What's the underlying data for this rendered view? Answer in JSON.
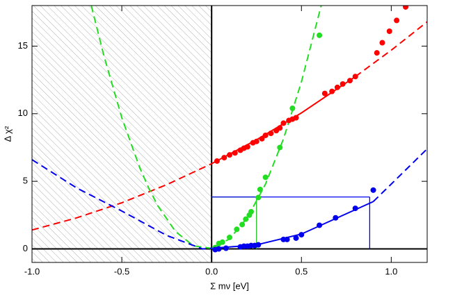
{
  "chart_data": {
    "type": "scatter",
    "xlabel": "Σ mν [eV]",
    "ylabel": "Δ χ²",
    "xlim": [
      -1.0,
      1.2
    ],
    "ylim": [
      -1,
      18
    ],
    "xticks": [
      {
        "value": -1.0,
        "label": "-1.0"
      },
      -0.5,
      {
        "value": 0.0,
        "label": "0.0"
      },
      0.5,
      {
        "value": 1.0,
        "label": "1.0"
      }
    ],
    "yticks": [
      0,
      5,
      10,
      15
    ],
    "shaded_region": [
      -1.0,
      0.0
    ],
    "series": [
      {
        "color": "#ff0000",
        "x": [
          0.03,
          0.07,
          0.1,
          0.13,
          0.16,
          0.18,
          0.2,
          0.23,
          0.25,
          0.28,
          0.3,
          0.33,
          0.36,
          0.38,
          0.4,
          0.43,
          0.45,
          0.47,
          0.63,
          0.67,
          0.7,
          0.73,
          0.77,
          0.8,
          0.92,
          0.95,
          0.99,
          1.03,
          1.08
        ],
        "values": [
          6.5,
          6.75,
          6.95,
          7.1,
          7.3,
          7.45,
          7.55,
          7.85,
          7.95,
          8.15,
          8.4,
          8.55,
          8.75,
          8.95,
          9.3,
          9.5,
          9.6,
          9.7,
          11.5,
          11.65,
          11.95,
          12.2,
          12.45,
          12.75,
          14.5,
          15.25,
          16.1,
          16.9,
          17.9
        ]
      },
      {
        "color": "#22dd22",
        "x": [
          0.02,
          0.04,
          0.06,
          0.1,
          0.14,
          0.17,
          0.19,
          0.21,
          0.22,
          0.26,
          0.27,
          0.3,
          0.38,
          0.45,
          0.6
        ],
        "values": [
          0.1,
          0.4,
          0.5,
          0.85,
          1.45,
          1.8,
          2.2,
          2.5,
          2.75,
          3.8,
          4.4,
          5.3,
          7.5,
          10.4,
          15.8
        ]
      },
      {
        "color": "#0000ee",
        "x": [
          0.02,
          0.04,
          0.08,
          0.16,
          0.18,
          0.2,
          0.22,
          0.24,
          0.26,
          0.4,
          0.42,
          0.47,
          0.5,
          0.6,
          0.69,
          0.8,
          0.9
        ],
        "values": [
          -0.05,
          0.0,
          0.05,
          0.15,
          0.2,
          0.2,
          0.25,
          0.25,
          0.3,
          0.7,
          0.7,
          0.8,
          1.05,
          1.75,
          2.3,
          3.0,
          4.35
        ]
      }
    ],
    "lines": [
      {
        "color": "#ff0000",
        "linestyle": "dashed",
        "x": [
          -1.0,
          -0.75,
          -0.5,
          -0.25,
          0.0
        ],
        "values": [
          1.4,
          2.3,
          3.41,
          4.75,
          6.3
        ]
      },
      {
        "color": "#ff0000",
        "linestyle": "solid",
        "x": [
          0.0,
          0.25,
          0.5,
          0.8
        ],
        "values": [
          6.3,
          8.07,
          10.06,
          12.74
        ]
      },
      {
        "color": "#ff0000",
        "linestyle": "dashed",
        "x": [
          0.8,
          1.0,
          1.2
        ],
        "values": [
          12.74,
          14.7,
          16.8
        ]
      },
      {
        "color": "#22dd22",
        "linestyle": "dashed",
        "x": [
          -0.67,
          -0.6,
          -0.5,
          -0.4,
          -0.35,
          -0.3,
          -0.2,
          -0.1,
          0.0,
          0.1,
          0.2,
          0.3,
          0.4,
          0.5,
          0.61
        ],
        "values": [
          18.0,
          14.3,
          9.7,
          6.0,
          4.5,
          3.2,
          1.27,
          0.22,
          0.04,
          0.74,
          2.33,
          4.79,
          8.14,
          12.36,
          18.0
        ]
      },
      {
        "color": "#0000ee",
        "linestyle": "dashed",
        "x": [
          -1.0,
          -0.75,
          -0.5,
          -0.25,
          -0.05,
          0.0
        ],
        "values": [
          6.6,
          4.5,
          2.8,
          1.0,
          0.0,
          0.05
        ]
      },
      {
        "color": "#0000ee",
        "linestyle": "solid",
        "x": [
          0.0,
          0.25,
          0.5,
          0.75,
          0.9
        ],
        "values": [
          0.05,
          0.3,
          1.1,
          2.6,
          3.5
        ]
      },
      {
        "color": "#0000ee",
        "linestyle": "dashed",
        "x": [
          0.9,
          1.0,
          1.2
        ],
        "values": [
          3.5,
          4.8,
          7.4
        ]
      }
    ],
    "limits": [
      {
        "color": "#22bb22",
        "x": 0.25,
        "y": 3.84
      },
      {
        "color": "#0000ee",
        "x": 0.88,
        "y": 3.84
      }
    ]
  }
}
